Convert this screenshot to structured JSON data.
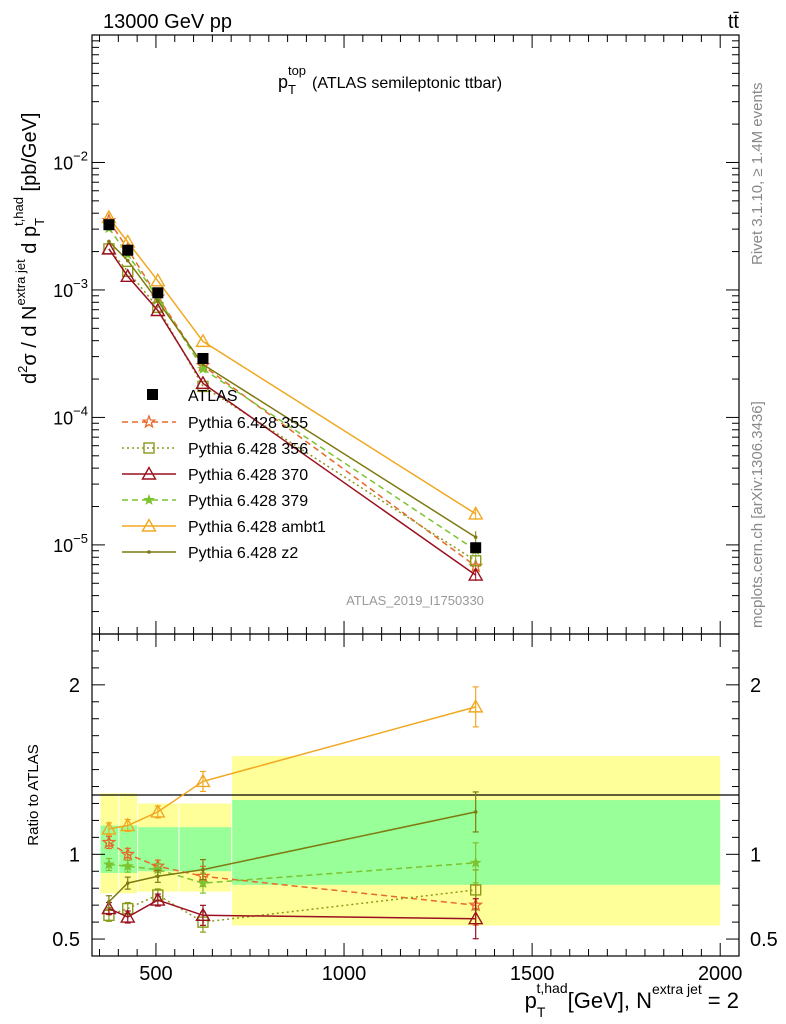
{
  "header": {
    "energy_label": "13000 GeV pp",
    "process_label": "tt̄"
  },
  "side_labels": {
    "rivet": "Rivet 3.1.10, ≥ 1.4M events",
    "mcplots": "mcplots.cern.ch [arXiv:1306.3436]"
  },
  "chart_data": [
    {
      "type": "line",
      "title": {
        "main": "p",
        "sub": "T",
        "sup": "top",
        "rest": "(ATLAS semileptonic ttbar)"
      },
      "analysis_id": "ATLAS_2019_I1750330",
      "ylabel": "d²σ / d N^extra jet d p_T^t,had [pb/GeV]",
      "yscale": "log",
      "ylim": [
        2e-06,
        0.1
      ],
      "xlim": [
        330,
        2050
      ],
      "y_ticks": [
        {
          "value": 0.01,
          "base": "10",
          "exp": "−2"
        },
        {
          "value": 0.001,
          "base": "10",
          "exp": "−3"
        },
        {
          "value": 0.0001,
          "base": "10",
          "exp": "−4"
        },
        {
          "value": 1e-05,
          "base": "10",
          "exp": "−5"
        }
      ],
      "x": [
        375,
        425,
        505,
        625,
        1350
      ],
      "data": {
        "name": "ATLAS",
        "values": [
          0.00325,
          0.00205,
          0.00095,
          0.00029,
          9.5e-06
        ]
      },
      "series": [
        {
          "name": "Pythia 6.428 355",
          "color": "#e8692a",
          "marker": "star-open",
          "dash": "6,4",
          "values": [
            0.0035,
            0.0021,
            0.00088,
            0.000255,
            6.8e-06
          ]
        },
        {
          "name": "Pythia 6.428 356",
          "color": "#8a9a1a",
          "marker": "square-open",
          "dash": "2,3",
          "values": [
            0.0021,
            0.0014,
            0.00073,
            0.000175,
            7.5e-06
          ]
        },
        {
          "name": "Pythia 6.428 370",
          "color": "#9b1020",
          "marker": "triangle-open",
          "dash": "",
          "values": [
            0.0021,
            0.00128,
            0.00069,
            0.000185,
            5.8e-06
          ]
        },
        {
          "name": "Pythia 6.428 379",
          "color": "#7cc330",
          "marker": "star-filled",
          "dash": "6,4",
          "values": [
            0.00305,
            0.0019,
            0.00087,
            0.00024,
            9.1e-06
          ]
        },
        {
          "name": "Pythia 6.428 ambt1",
          "color": "#f0a820",
          "marker": "triangle-open",
          "dash": "",
          "values": [
            0.0037,
            0.00238,
            0.00118,
            0.000395,
            1.75e-05
          ]
        },
        {
          "name": "Pythia 6.428 z2",
          "color": "#7e7a10",
          "marker": "dot",
          "dash": "",
          "values": [
            0.0024,
            0.0017,
            0.00082,
            0.00026,
            1.15e-05
          ]
        }
      ],
      "legend_position": "center-left"
    },
    {
      "type": "line",
      "ylabel": "Ratio to ATLAS",
      "xlabel": {
        "p": "p",
        "sup": "t,had",
        "sub": "T",
        "rest": "[GeV], N",
        "rest_sup": "extra jet",
        "tail": "= 2"
      },
      "ylim": [
        0.4,
        2.3
      ],
      "xlim": [
        330,
        2050
      ],
      "x_ticks": [
        500,
        1000,
        1500,
        2000
      ],
      "y_ticks": [
        "0.5",
        "1",
        "2"
      ],
      "reference": 1,
      "bands": [
        {
          "x0": 350,
          "x1": 400,
          "green": [
            0.89,
            1.17
          ],
          "yellow": [
            0.77,
            1.36
          ]
        },
        {
          "x0": 400,
          "x1": 450,
          "green": [
            0.89,
            1.17
          ],
          "yellow": [
            0.77,
            1.36
          ]
        },
        {
          "x0": 450,
          "x1": 560,
          "green": [
            0.9,
            1.16
          ],
          "yellow": [
            0.78,
            1.3
          ]
        },
        {
          "x0": 560,
          "x1": 700,
          "green": [
            0.9,
            1.16
          ],
          "yellow": [
            0.78,
            1.3
          ]
        },
        {
          "x0": 700,
          "x1": 2000,
          "green": [
            0.82,
            1.32
          ],
          "yellow": [
            0.58,
            1.58
          ]
        }
      ],
      "x": [
        375,
        425,
        505,
        625,
        1350
      ],
      "series": [
        {
          "name": "Pythia 6.428 355",
          "values": [
            1.07,
            1.0,
            0.93,
            0.87,
            0.7
          ]
        },
        {
          "name": "Pythia 6.428 356",
          "values": [
            0.64,
            0.68,
            0.76,
            0.6,
            0.79
          ]
        },
        {
          "name": "Pythia 6.428 370",
          "values": [
            0.68,
            0.63,
            0.73,
            0.64,
            0.62
          ]
        },
        {
          "name": "Pythia 6.428 379",
          "values": [
            0.94,
            0.93,
            0.91,
            0.83,
            0.95
          ]
        },
        {
          "name": "Pythia 6.428 ambt1",
          "values": [
            1.15,
            1.17,
            1.25,
            1.43,
            1.87
          ]
        },
        {
          "name": "Pythia 6.428 z2",
          "values": [
            0.72,
            0.83,
            0.87,
            0.91,
            1.25
          ]
        }
      ]
    }
  ]
}
